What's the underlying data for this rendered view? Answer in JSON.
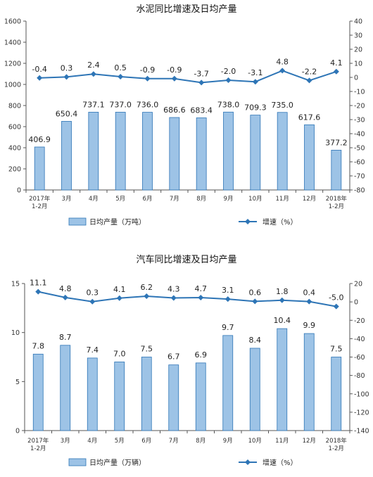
{
  "colors": {
    "bar_fill": "#9DC3E6",
    "bar_stroke": "#2E75B6",
    "line": "#2E75B6",
    "axis": "#555555"
  },
  "chart_data": [
    {
      "type": "bar",
      "title": "水泥同比增速及日均产量",
      "categories": [
        [
          "2017年",
          "1-2月"
        ],
        [
          "3月"
        ],
        [
          "4月"
        ],
        [
          "5月"
        ],
        [
          "6月"
        ],
        [
          "7月"
        ],
        [
          "8月"
        ],
        [
          "9月"
        ],
        [
          "10月"
        ],
        [
          "11月"
        ],
        [
          "12月"
        ],
        [
          "2018年",
          "1-2月"
        ]
      ],
      "left_axis": {
        "min": 0,
        "max": 1600,
        "step": 200,
        "ticks": [
          "0",
          "200",
          "400",
          "600",
          "800",
          "1000",
          "1200",
          "1400",
          "1600"
        ]
      },
      "right_axis": {
        "min": -80,
        "max": 40,
        "step": 10,
        "ticks": [
          "-80",
          "-70",
          "-60",
          "-50",
          "-40",
          "-30",
          "-20",
          "-10",
          "0",
          "10",
          "20",
          "30",
          "40"
        ]
      },
      "series": [
        {
          "name": "日均产量（万吨）",
          "type": "bar",
          "axis": "left",
          "values": [
            406.9,
            650.4,
            737.1,
            737.0,
            736.0,
            686.6,
            683.4,
            738.0,
            709.3,
            735.0,
            617.6,
            377.2
          ],
          "labels": [
            "406.9",
            "650.4",
            "737.1",
            "737.0",
            "736.0",
            "686.6",
            "683.4",
            "738.0",
            "709.3",
            "735.0",
            "617.6",
            "377.2"
          ]
        },
        {
          "name": "增速（%）",
          "type": "line",
          "axis": "right",
          "values": [
            -0.4,
            0.3,
            2.4,
            0.5,
            -0.9,
            -0.9,
            -3.7,
            -2.0,
            -3.1,
            4.8,
            -2.2,
            4.1
          ],
          "labels": [
            "-0.4",
            "0.3",
            "2.4",
            "0.5",
            "-0.9",
            "-0.9",
            "-3.7",
            "-2.0",
            "-3.1",
            "4.8",
            "-2.2",
            "4.1"
          ]
        }
      ],
      "grid": false,
      "legend_position": "bottom"
    },
    {
      "type": "bar",
      "title": "汽车同比增速及日均产量",
      "categories": [
        [
          "2017年",
          "1-2月"
        ],
        [
          "3月"
        ],
        [
          "4月"
        ],
        [
          "5月"
        ],
        [
          "6月"
        ],
        [
          "7月"
        ],
        [
          "8月"
        ],
        [
          "9月"
        ],
        [
          "10月"
        ],
        [
          "11月"
        ],
        [
          "12月"
        ],
        [
          "2018年",
          "1-2月"
        ]
      ],
      "left_axis": {
        "min": 0,
        "max": 15,
        "step": 5,
        "ticks": [
          "0",
          "5",
          "10",
          "15"
        ]
      },
      "right_axis": {
        "min": -140,
        "max": 20,
        "step": 20,
        "ticks": [
          "-140",
          "-120",
          "-100",
          "-80",
          "-60",
          "-40",
          "-20",
          "0",
          "20"
        ]
      },
      "series": [
        {
          "name": "日均产量（万辆）",
          "type": "bar",
          "axis": "left",
          "values": [
            7.8,
            8.7,
            7.4,
            7.0,
            7.5,
            6.7,
            6.9,
            9.7,
            8.4,
            10.4,
            9.9,
            7.5
          ],
          "labels": [
            "7.8",
            "8.7",
            "7.4",
            "7.0",
            "7.5",
            "6.7",
            "6.9",
            "9.7",
            "8.4",
            "10.4",
            "9.9",
            "7.5"
          ]
        },
        {
          "name": "增速（%）",
          "type": "line",
          "axis": "right",
          "values": [
            11.1,
            4.8,
            0.3,
            4.1,
            6.2,
            4.3,
            4.7,
            3.1,
            0.6,
            1.8,
            0.4,
            -5.0
          ],
          "labels": [
            "11.1",
            "4.8",
            "0.3",
            "4.1",
            "6.2",
            "4.3",
            "4.7",
            "3.1",
            "0.6",
            "1.8",
            "0.4",
            "-5.0"
          ]
        }
      ],
      "grid": false,
      "legend_position": "bottom"
    }
  ]
}
